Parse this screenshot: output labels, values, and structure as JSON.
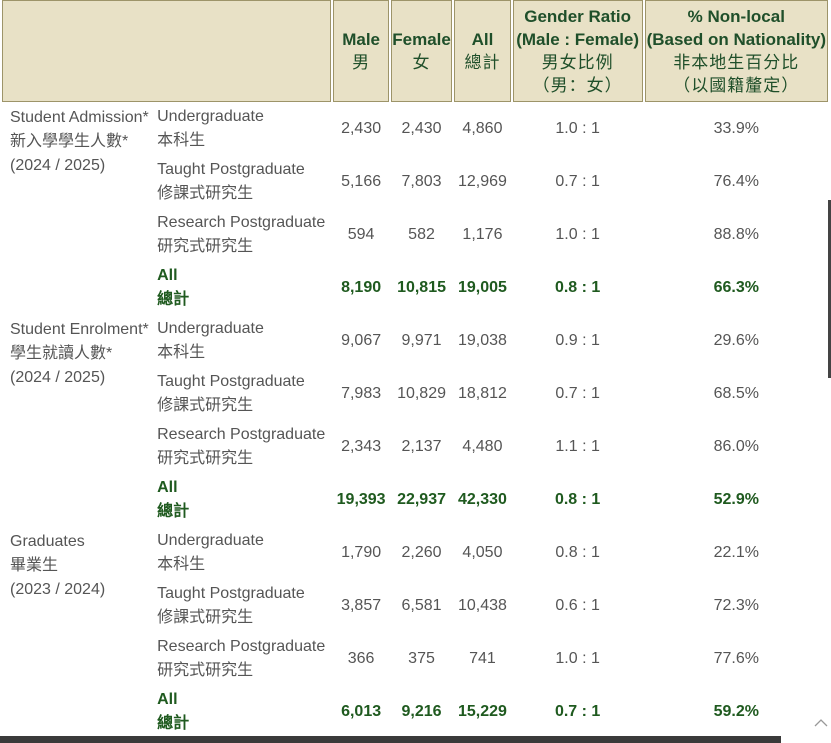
{
  "header": {
    "male": {
      "en": "Male",
      "zh": "男"
    },
    "female": {
      "en": "Female",
      "zh": "女"
    },
    "all": {
      "en": "All",
      "zh": "總計"
    },
    "ratio": {
      "en1": "Gender Ratio",
      "en2": "(Male : Female)",
      "zh1": "男女比例",
      "zh2": "（男：女）"
    },
    "nonlocal": {
      "en1": "% Non-local",
      "en2": "(Based on Nationality)",
      "zh1": "非本地生百分比",
      "zh2": "（以國籍釐定）"
    }
  },
  "sections": [
    {
      "label_en": "Student Admission*",
      "label_zh": "新入學學生人數*",
      "year": "(2024 / 2025)",
      "rows": [
        {
          "en": "Undergraduate",
          "zh": "本科生",
          "male": "2,430",
          "female": "2,430",
          "all": "4,860",
          "ratio": "1.0 : 1",
          "nonlocal": "33.9%"
        },
        {
          "en": "Taught Postgraduate",
          "zh": "修課式研究生",
          "male": "5,166",
          "female": "7,803",
          "all": "12,969",
          "ratio": "0.7 : 1",
          "nonlocal": "76.4%"
        },
        {
          "en": "Research Postgraduate",
          "zh": "研究式研究生",
          "male": "594",
          "female": "582",
          "all": "1,176",
          "ratio": "1.0 : 1",
          "nonlocal": "88.8%"
        },
        {
          "en": "All",
          "zh": "總計",
          "male": "8,190",
          "female": "10,815",
          "all": "19,005",
          "ratio": "0.8 : 1",
          "nonlocal": "66.3%"
        }
      ]
    },
    {
      "label_en": "Student Enrolment*",
      "label_zh": "學生就讀人數*",
      "year": "(2024 / 2025)",
      "rows": [
        {
          "en": "Undergraduate",
          "zh": "本科生",
          "male": "9,067",
          "female": "9,971",
          "all": "19,038",
          "ratio": "0.9 : 1",
          "nonlocal": "29.6%"
        },
        {
          "en": "Taught Postgraduate",
          "zh": "修課式研究生",
          "male": "7,983",
          "female": "10,829",
          "all": "18,812",
          "ratio": "0.7 : 1",
          "nonlocal": "68.5%"
        },
        {
          "en": "Research Postgraduate",
          "zh": "研究式研究生",
          "male": "2,343",
          "female": "2,137",
          "all": "4,480",
          "ratio": "1.1 : 1",
          "nonlocal": "86.0%"
        },
        {
          "en": "All",
          "zh": "總計",
          "male": "19,393",
          "female": "22,937",
          "all": "42,330",
          "ratio": "0.8 : 1",
          "nonlocal": "52.9%"
        }
      ]
    },
    {
      "label_en": "Graduates",
      "label_zh": "畢業生",
      "year": "(2023 / 2024)",
      "rows": [
        {
          "en": "Undergraduate",
          "zh": "本科生",
          "male": "1,790",
          "female": "2,260",
          "all": "4,050",
          "ratio": "0.8 : 1",
          "nonlocal": "22.1%"
        },
        {
          "en": "Taught Postgraduate",
          "zh": "修課式研究生",
          "male": "3,857",
          "female": "6,581",
          "all": "10,438",
          "ratio": "0.6 : 1",
          "nonlocal": "72.3%"
        },
        {
          "en": "Research Postgraduate",
          "zh": "研究式研究生",
          "male": "366",
          "female": "375",
          "all": "741",
          "ratio": "1.0 : 1",
          "nonlocal": "77.6%"
        },
        {
          "en": "All",
          "zh": "總計",
          "male": "6,013",
          "female": "9,216",
          "all": "15,229",
          "ratio": "0.7 : 1",
          "nonlocal": "59.2%"
        }
      ]
    }
  ],
  "icons": {
    "scroll_up": "chevron-up-icon"
  },
  "colors": {
    "header_bg": "#e8e1c6",
    "header_text": "#1f4f2a",
    "total_text": "#1f5a1f"
  }
}
